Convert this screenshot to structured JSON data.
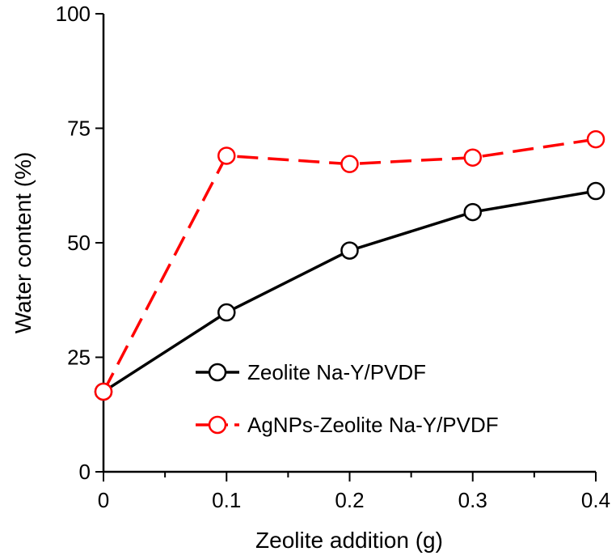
{
  "chart_data": {
    "type": "line",
    "title": "",
    "xlabel": "Zeolite addition (g)",
    "ylabel": "Water content (%)",
    "xlim": [
      0,
      0.4
    ],
    "ylim": [
      0,
      100
    ],
    "x_ticks": [
      0,
      0.1,
      0.2,
      0.3,
      0.4
    ],
    "x_tick_labels": [
      "0",
      "0.1",
      "0.2",
      "0.3",
      "0.4"
    ],
    "y_ticks": [
      0,
      25,
      50,
      75,
      100
    ],
    "y_tick_labels": [
      "0",
      "25",
      "50",
      "75",
      "100"
    ],
    "grid": false,
    "legend_position": "bottom-right",
    "series": [
      {
        "name": "Zeolite Na-Y/PVDF",
        "color": "#000000",
        "line_style": "solid",
        "marker": "open-circle",
        "x": [
          0,
          0.1,
          0.2,
          0.3,
          0.4
        ],
        "y": [
          17.5,
          34.8,
          48.3,
          56.7,
          61.3
        ]
      },
      {
        "name": "AgNPs-Zeolite Na-Y/PVDF",
        "color": "#ff0000",
        "line_style": "dashed",
        "marker": "open-circle",
        "x": [
          0,
          0.1,
          0.2,
          0.3,
          0.4
        ],
        "y": [
          17.5,
          69.0,
          67.2,
          68.6,
          72.6
        ]
      }
    ]
  }
}
